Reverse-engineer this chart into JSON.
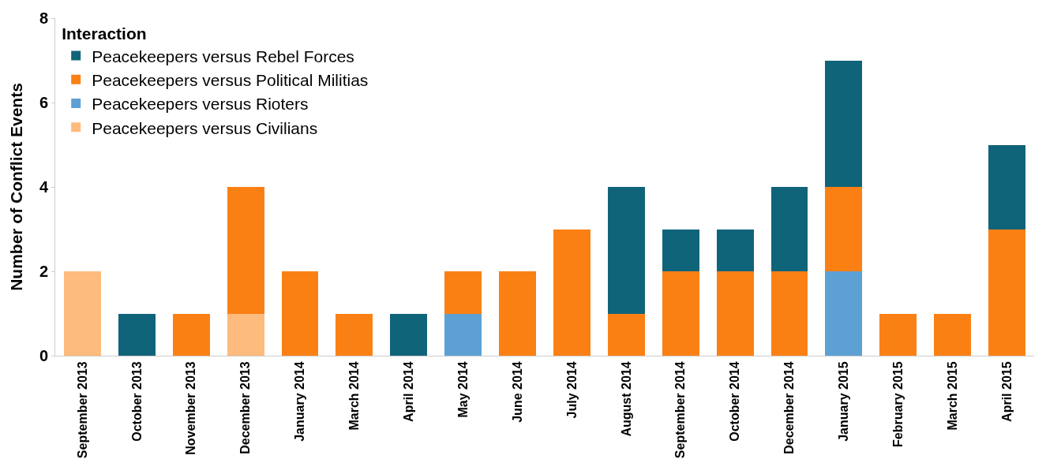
{
  "chart_data": {
    "type": "bar",
    "stacked": true,
    "ylabel": "Number of Conflict Events",
    "legend_title": "Interaction",
    "legend": "top left",
    "grid": false,
    "categories": [
      "September 2013",
      "October 2013",
      "November 2013",
      "December 2013",
      "January 2014",
      "March 2014",
      "April 2014",
      "May 2014",
      "June 2014",
      "July 2014",
      "August 2014",
      "September 2014",
      "October 2014",
      "December 2014",
      "January 2015",
      "February 2015",
      "March 2015",
      "April 2015"
    ],
    "ylim": [
      0,
      8
    ],
    "yticks": [
      0,
      2,
      4,
      6,
      8
    ],
    "series": [
      {
        "name": "Peacekeepers versus Civilians",
        "color": "#fdbb7d",
        "values": [
          2,
          null,
          null,
          1,
          null,
          null,
          null,
          null,
          null,
          null,
          null,
          null,
          null,
          null,
          null,
          null,
          null,
          null
        ]
      },
      {
        "name": "Peacekeepers versus Rioters",
        "color": "#5da0d4",
        "values": [
          null,
          null,
          null,
          null,
          null,
          null,
          null,
          1,
          null,
          null,
          null,
          null,
          null,
          null,
          2,
          null,
          null,
          null
        ]
      },
      {
        "name": "Peacekeepers versus Political Militias",
        "color": "#fb8014",
        "values": [
          null,
          null,
          1,
          3,
          2,
          1,
          null,
          1,
          2,
          3,
          1,
          2,
          2,
          2,
          2,
          1,
          1,
          3
        ]
      },
      {
        "name": "Peacekeepers versus Rebel Forces",
        "color": "#10647a",
        "values": [
          null,
          1,
          null,
          null,
          null,
          null,
          1,
          null,
          null,
          null,
          3,
          1,
          1,
          2,
          3,
          null,
          null,
          2
        ]
      }
    ]
  }
}
